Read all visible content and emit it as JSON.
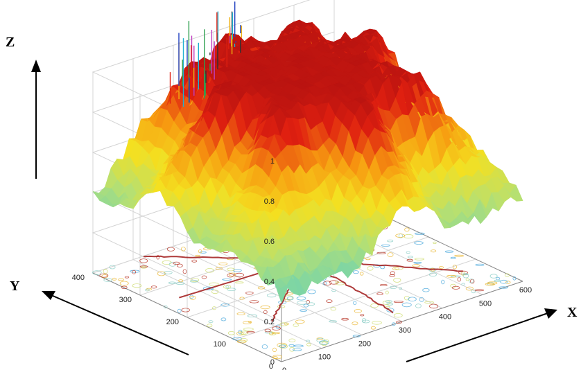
{
  "chart_data": {
    "type": "surface3d",
    "title": "",
    "axes": {
      "x": {
        "label": "X",
        "range": [
          0,
          600
        ],
        "ticks": [
          "0",
          "100",
          "200",
          "300",
          "400",
          "500",
          "600"
        ]
      },
      "y": {
        "label": "Y",
        "range": [
          0,
          400
        ],
        "ticks": [
          "0",
          "100",
          "200",
          "300",
          "400"
        ]
      },
      "z": {
        "label": "Z",
        "range": [
          0,
          1
        ],
        "ticks": [
          "0",
          "0.2",
          "0.4",
          "0.6",
          "0.8",
          "1"
        ]
      }
    },
    "grid": true,
    "colormap": "jet",
    "colormap_stops": [
      "#1f3fb0",
      "#2aa7e0",
      "#5fd0c0",
      "#b8e070",
      "#f4e020",
      "#f79a10",
      "#e02010",
      "#b01010"
    ],
    "floor_contour": true,
    "surface_description_values": {
      "background_level_z": 0.25,
      "ridge_peak_z": 0.97,
      "center_xy": [
        350,
        250
      ],
      "spike_max_z": 1.15
    }
  }
}
